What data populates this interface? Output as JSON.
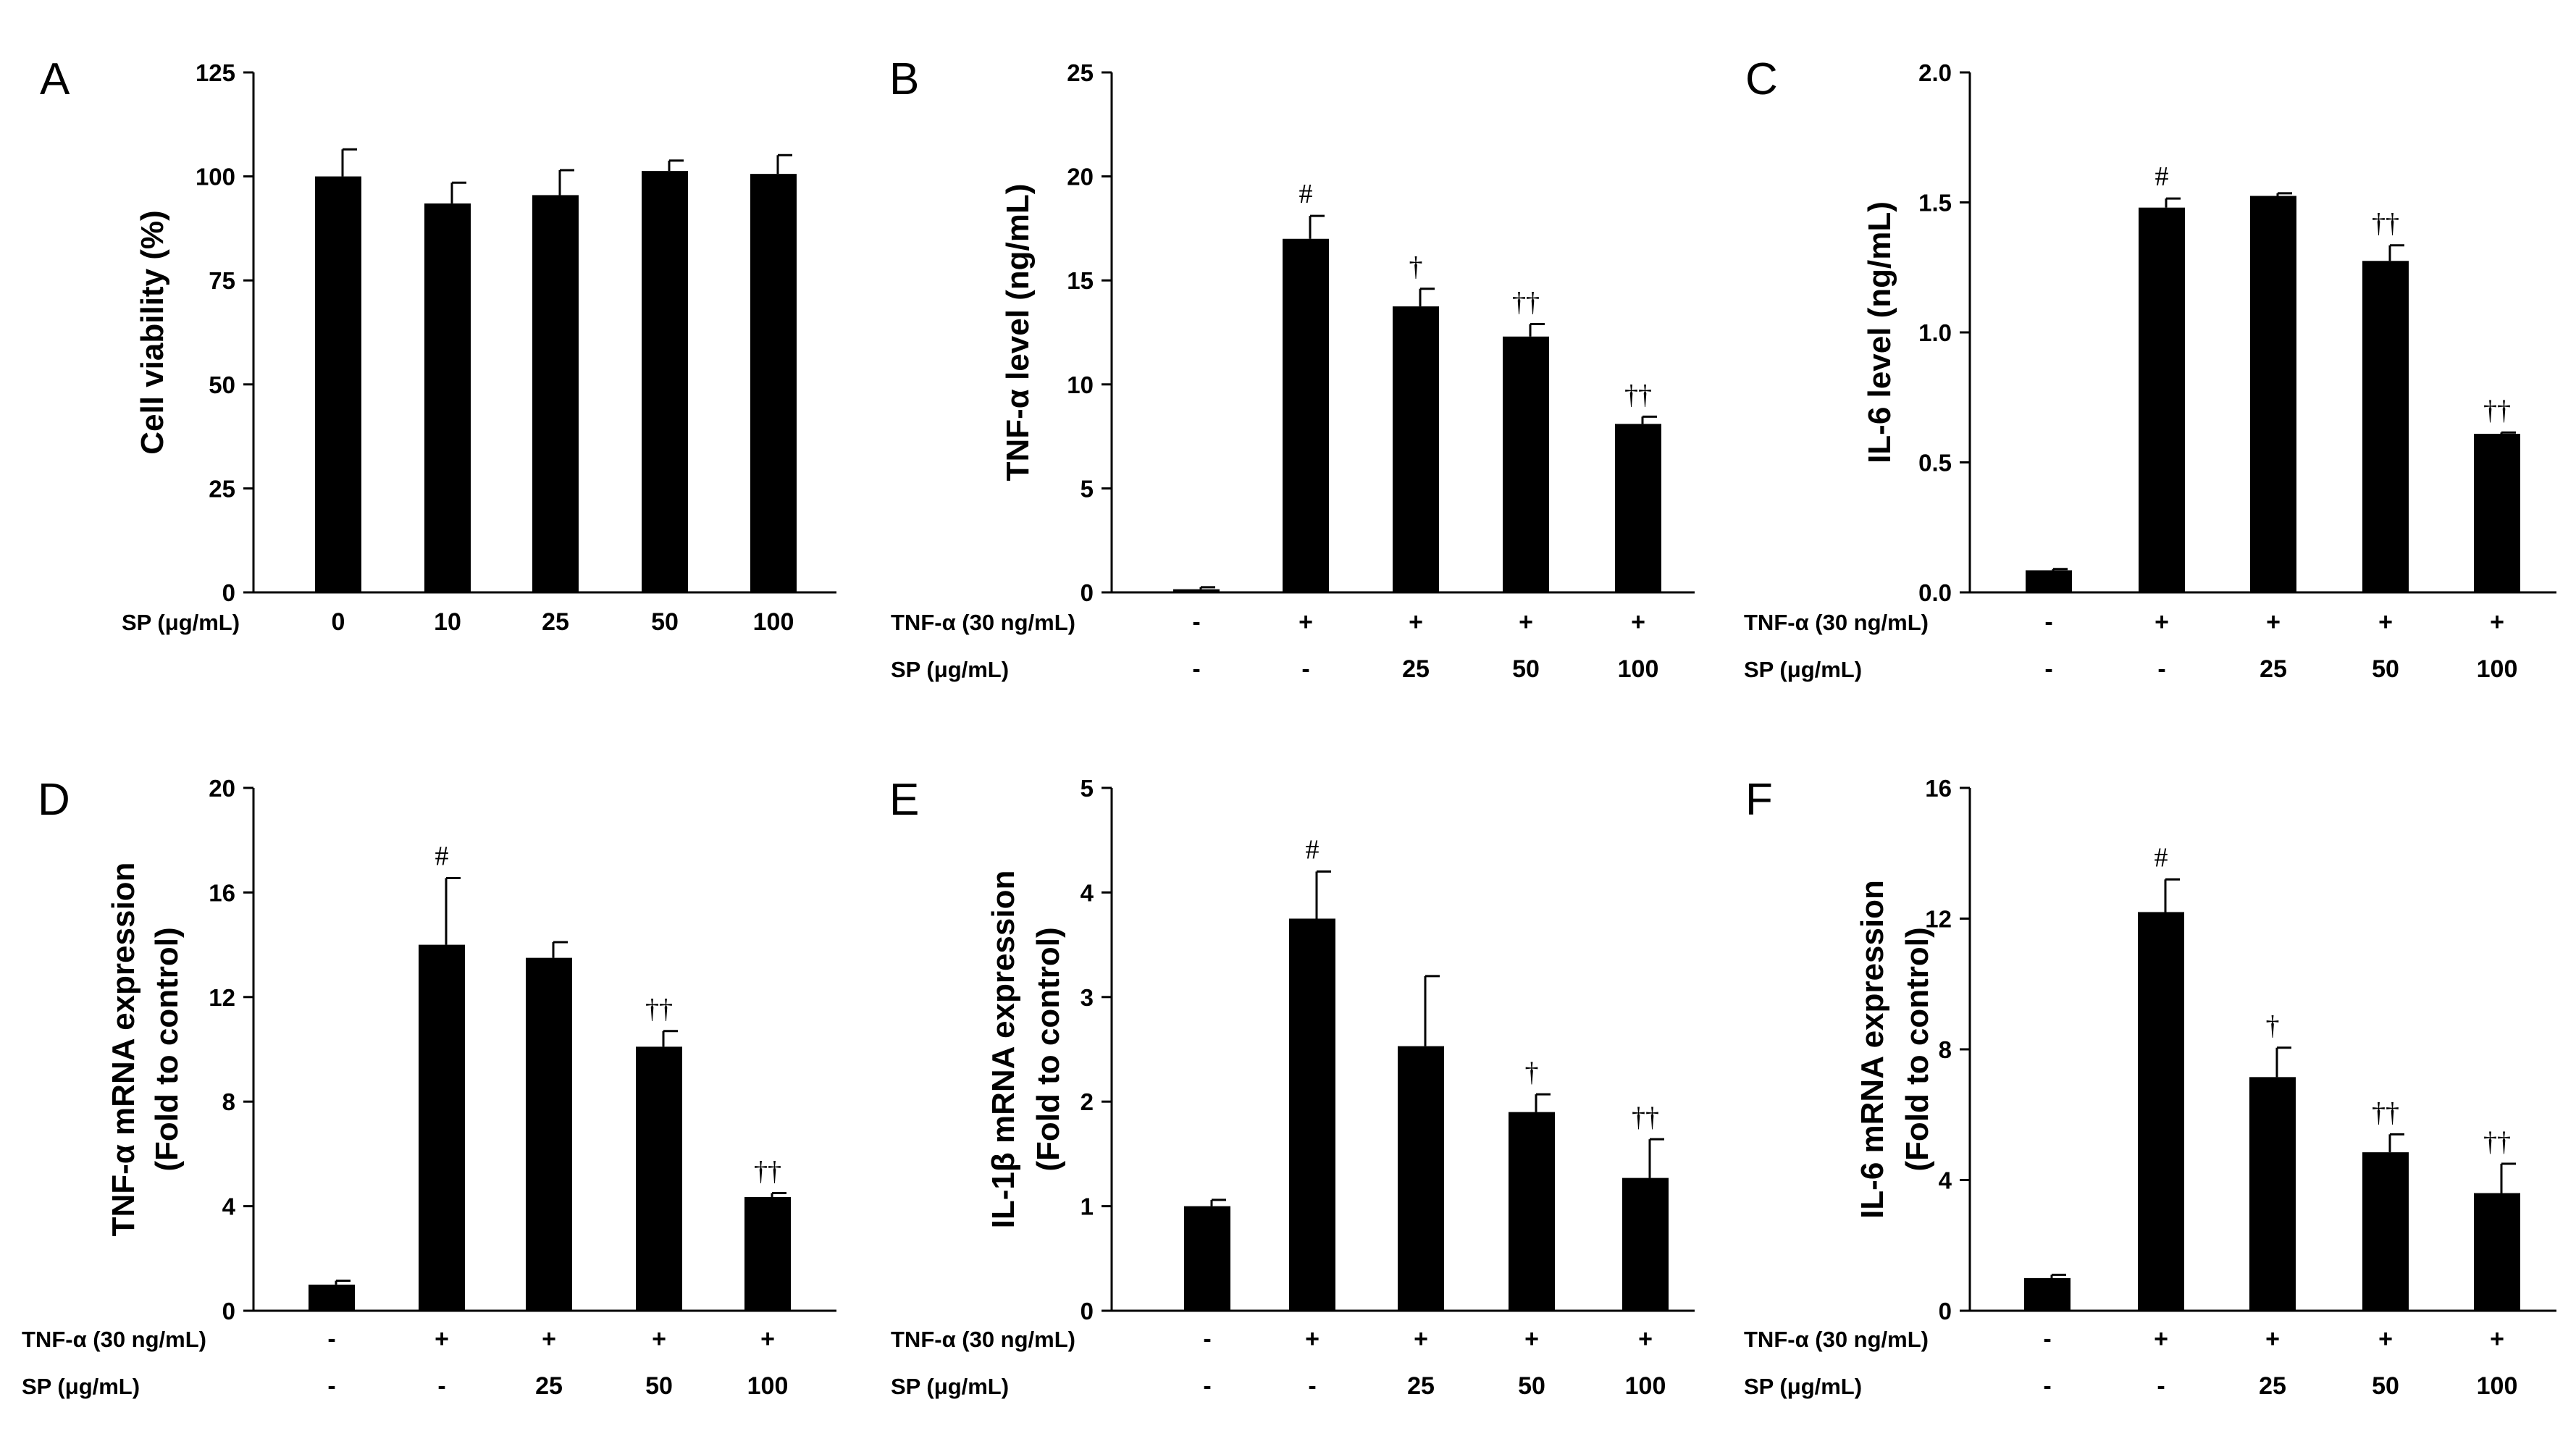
{
  "chart_data": [
    {
      "type": "bar",
      "panel": "A",
      "ylabel": "Cell viability (%)",
      "ylim": [
        0,
        125
      ],
      "yticks": [
        0,
        25,
        50,
        75,
        100,
        125
      ],
      "rows": [
        {
          "label": "SP (μg/mL)",
          "values": [
            "0",
            "10",
            "25",
            "50",
            "100"
          ]
        }
      ],
      "values": [
        100,
        93.5,
        95.5,
        101.3,
        100.6
      ],
      "errors": [
        6.5,
        5.0,
        6.0,
        2.5,
        4.5
      ],
      "annotations": [
        "",
        "",
        "",
        "",
        ""
      ]
    },
    {
      "type": "bar",
      "panel": "B",
      "ylabel": "TNF-α level (ng/mL)",
      "ylim": [
        0,
        25
      ],
      "yticks": [
        0,
        5,
        10,
        15,
        20,
        25
      ],
      "rows": [
        {
          "label": "TNF-α (30 ng/mL)",
          "values": [
            "-",
            "+",
            "+",
            "+",
            "+"
          ]
        },
        {
          "label": "SP (μg/mL)",
          "values": [
            "-",
            "-",
            "25",
            "50",
            "100"
          ]
        }
      ],
      "values": [
        0.15,
        17.0,
        13.75,
        12.3,
        8.1
      ],
      "errors": [
        0.1,
        1.1,
        0.85,
        0.6,
        0.35
      ],
      "annotations": [
        "",
        "#",
        "†",
        "††",
        "††"
      ]
    },
    {
      "type": "bar",
      "panel": "C",
      "ylabel": "IL-6 level (ng/mL)",
      "ylim": [
        0,
        2.0
      ],
      "yticks": [
        "0.0",
        "0.5",
        "1.0",
        "1.5",
        "2.0"
      ],
      "rows": [
        {
          "label": "TNF-α (30 ng/mL)",
          "values": [
            "-",
            "+",
            "+",
            "+",
            "+"
          ]
        },
        {
          "label": "SP (μg/mL)",
          "values": [
            "-",
            "-",
            "25",
            "50",
            "100"
          ]
        }
      ],
      "values": [
        0.085,
        1.48,
        1.525,
        1.275,
        0.61
      ],
      "errors": [
        0.005,
        0.035,
        0.01,
        0.06,
        0.005
      ],
      "annotations": [
        "",
        "#",
        "",
        "††",
        "††"
      ]
    },
    {
      "type": "bar",
      "panel": "D",
      "ylabel": "TNF-α mRNA expression",
      "ylabel2": "(Fold to control)",
      "ylim": [
        0,
        20
      ],
      "yticks": [
        0,
        4,
        8,
        12,
        16,
        20
      ],
      "rows": [
        {
          "label": "TNF-α (30 ng/mL)",
          "values": [
            "-",
            "+",
            "+",
            "+",
            "+"
          ]
        },
        {
          "label": "SP (μg/mL)",
          "values": [
            "-",
            "-",
            "25",
            "50",
            "100"
          ]
        }
      ],
      "values": [
        1.0,
        14.0,
        13.5,
        10.1,
        4.35
      ],
      "errors": [
        0.15,
        2.55,
        0.6,
        0.6,
        0.15
      ],
      "annotations": [
        "",
        "#",
        "",
        "††",
        "††"
      ]
    },
    {
      "type": "bar",
      "panel": "E",
      "ylabel": "IL-1β mRNA expression",
      "ylabel2": "(Fold to control)",
      "ylim": [
        0,
        5
      ],
      "yticks": [
        0,
        1,
        2,
        3,
        4,
        5
      ],
      "rows": [
        {
          "label": "TNF-α (30 ng/mL)",
          "values": [
            "-",
            "+",
            "+",
            "+",
            "+"
          ]
        },
        {
          "label": "SP (μg/mL)",
          "values": [
            "-",
            "-",
            "25",
            "50",
            "100"
          ]
        }
      ],
      "values": [
        1.0,
        3.75,
        2.53,
        1.9,
        1.27
      ],
      "errors": [
        0.06,
        0.45,
        0.67,
        0.17,
        0.37
      ],
      "annotations": [
        "",
        "#",
        "",
        "†",
        "††"
      ]
    },
    {
      "type": "bar",
      "panel": "F",
      "ylabel": "IL-6 mRNA expression",
      "ylabel2": "(Fold to control)",
      "ylim": [
        0,
        16
      ],
      "yticks": [
        0,
        4,
        8,
        12,
        16
      ],
      "rows": [
        {
          "label": "TNF-α (30 ng/mL)",
          "values": [
            "-",
            "+",
            "+",
            "+",
            "+"
          ]
        },
        {
          "label": "SP (μg/mL)",
          "values": [
            "-",
            "-",
            "25",
            "50",
            "100"
          ]
        }
      ],
      "values": [
        1.0,
        12.2,
        7.15,
        4.85,
        3.6
      ],
      "errors": [
        0.1,
        1.0,
        0.9,
        0.55,
        0.9
      ],
      "annotations": [
        "",
        "#",
        "†",
        "††",
        "††"
      ]
    }
  ]
}
